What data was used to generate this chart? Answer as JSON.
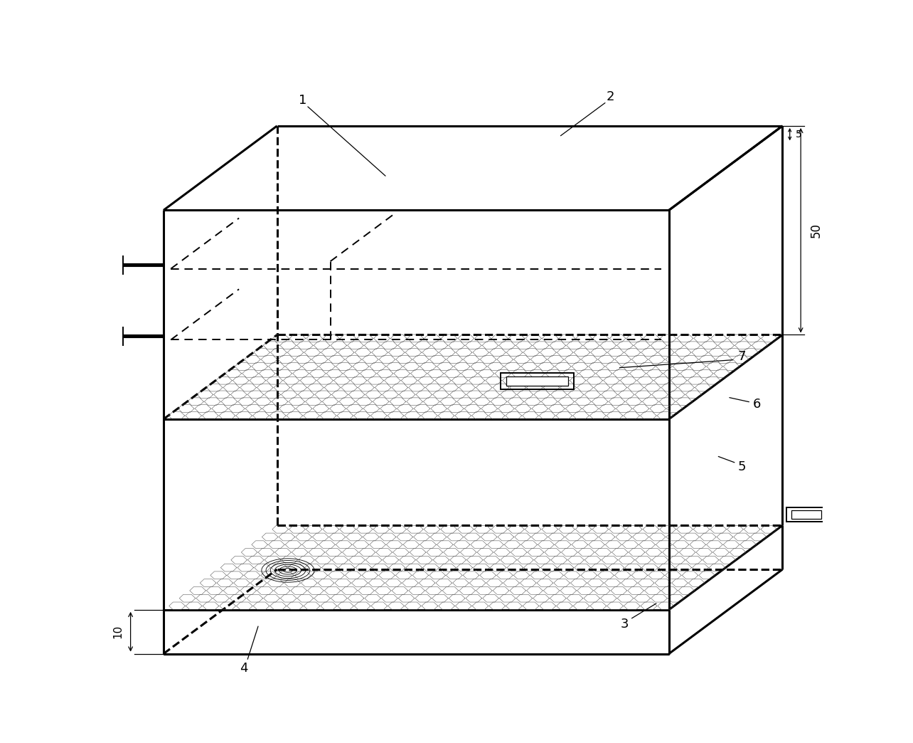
{
  "bg_color": "#ffffff",
  "lc": "#000000",
  "lw_thick": 2.2,
  "lw_med": 1.4,
  "lw_thin": 0.9,
  "figsize": [
    12.84,
    10.44
  ],
  "dpi": 100,
  "hex_color": "#444444",
  "hex_lw": 0.35,
  "label_fs": 13,
  "dim_fs": 12
}
